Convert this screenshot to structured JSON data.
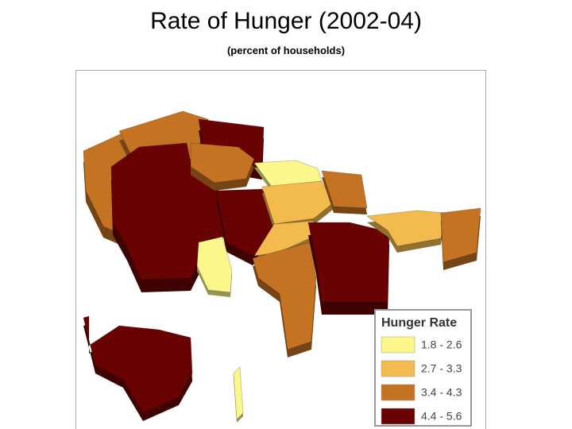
{
  "title": "Rate of Hunger (2002-04)",
  "subtitle": "(percent of households)",
  "legend": {
    "title": "Hunger Rate",
    "items": [
      {
        "label": "1.8 - 2.6",
        "color": "#fbf78a"
      },
      {
        "label": "2.7 - 3.3",
        "color": "#f3bb4e"
      },
      {
        "label": "3.4 - 4.3",
        "color": "#c47323"
      },
      {
        "label": "4.4 - 5.6",
        "color": "#690303"
      }
    ]
  }
}
